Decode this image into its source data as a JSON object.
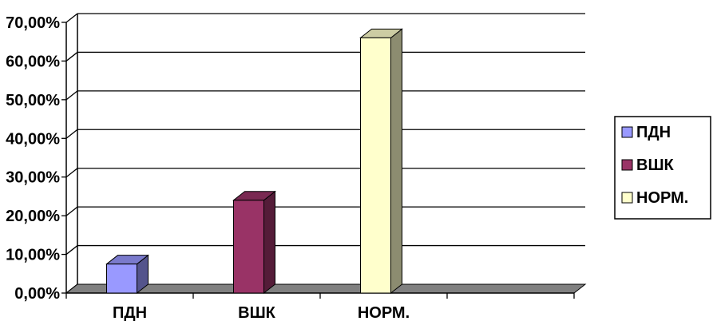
{
  "chart_data": {
    "type": "bar",
    "style": "3d-column",
    "categories": [
      "ПДН",
      "ВШК",
      "НОРМ."
    ],
    "series": [
      {
        "name": "ПДН",
        "values": [
          7.5,
          null,
          null
        ],
        "color": "#9999ff"
      },
      {
        "name": "ВШК",
        "values": [
          null,
          24,
          null
        ],
        "color": "#993366"
      },
      {
        "name": "НОРМ.",
        "values": [
          null,
          null,
          66
        ],
        "color": "#ffffcc"
      }
    ],
    "y_ticks": [
      "0,00%",
      "10,00%",
      "20,00%",
      "30,00%",
      "40,00%",
      "50,00%",
      "60,00%",
      "70,00%"
    ],
    "ylim": [
      0,
      70
    ],
    "grid": true,
    "legend_position": "right",
    "legend": [
      "ПДН",
      "ВШК",
      "НОРМ."
    ]
  }
}
